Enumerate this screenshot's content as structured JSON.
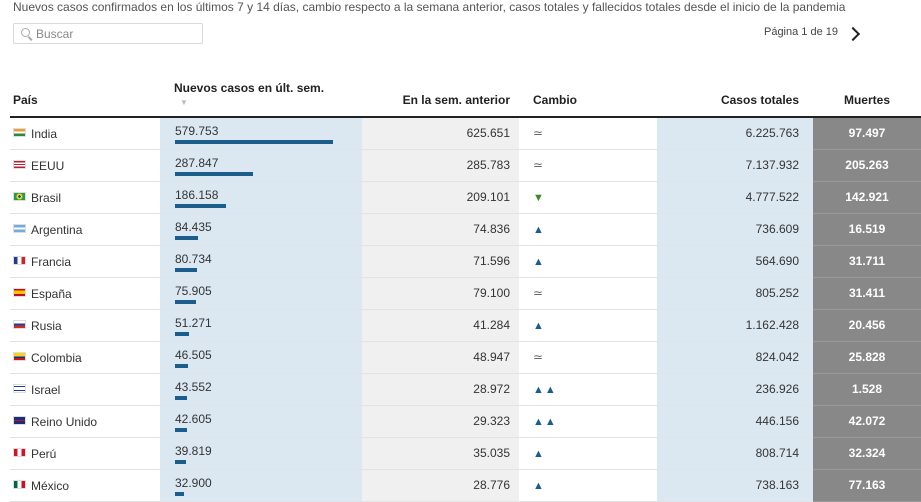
{
  "subtitle": "Nuevos casos confirmados en los últimos 7 y 14 días, cambio respecto a la semana anterior, casos totales y fallecidos totales desde el inicio de la pandemia",
  "search": {
    "placeholder": "Buscar",
    "value": ""
  },
  "pager": {
    "label": "Página 1 de 19"
  },
  "columns": {
    "country": "País",
    "new_cases": "Nuevos casos en últ. sem.",
    "prev_week": "En la sem. anterior",
    "change": "Cambio",
    "total": "Casos totales",
    "deaths": "Muertes"
  },
  "colors": {
    "bar": "#1b5e8c",
    "new_cases_bg": "#dbe8f2",
    "deaths_bg": "#888888",
    "up": "#1b5e8c",
    "down": "#3a8a2a"
  },
  "rows": [
    {
      "country": "India",
      "flag": "flag-india",
      "new_cases": "579.753",
      "new_cases_num": 579753,
      "prev_week": "625.651",
      "change": "≃",
      "change_type": "approx",
      "total": "6.225.763",
      "deaths": "97.497"
    },
    {
      "country": "EEUU",
      "flag": "flag-usa",
      "new_cases": "287.847",
      "new_cases_num": 287847,
      "prev_week": "285.783",
      "change": "≃",
      "change_type": "approx",
      "total": "7.137.932",
      "deaths": "205.263"
    },
    {
      "country": "Brasil",
      "flag": "flag-brazil",
      "new_cases": "186.158",
      "new_cases_num": 186158,
      "prev_week": "209.101",
      "change": "▼",
      "change_type": "down",
      "total": "4.777.522",
      "deaths": "142.921"
    },
    {
      "country": "Argentina",
      "flag": "flag-argentina",
      "new_cases": "84.435",
      "new_cases_num": 84435,
      "prev_week": "74.836",
      "change": "▲",
      "change_type": "up",
      "total": "736.609",
      "deaths": "16.519"
    },
    {
      "country": "Francia",
      "flag": "flag-france",
      "new_cases": "80.734",
      "new_cases_num": 80734,
      "prev_week": "71.596",
      "change": "▲",
      "change_type": "up",
      "total": "564.690",
      "deaths": "31.711"
    },
    {
      "country": "España",
      "flag": "flag-spain",
      "new_cases": "75.905",
      "new_cases_num": 75905,
      "prev_week": "79.100",
      "change": "≃",
      "change_type": "approx",
      "total": "805.252",
      "deaths": "31.411"
    },
    {
      "country": "Rusia",
      "flag": "flag-russia",
      "new_cases": "51.271",
      "new_cases_num": 51271,
      "prev_week": "41.284",
      "change": "▲",
      "change_type": "up",
      "total": "1.162.428",
      "deaths": "20.456"
    },
    {
      "country": "Colombia",
      "flag": "flag-colombia",
      "new_cases": "46.505",
      "new_cases_num": 46505,
      "prev_week": "48.947",
      "change": "≃",
      "change_type": "approx",
      "total": "824.042",
      "deaths": "25.828"
    },
    {
      "country": "Israel",
      "flag": "flag-israel",
      "new_cases": "43.552",
      "new_cases_num": 43552,
      "prev_week": "28.972",
      "change": "▲▲",
      "change_type": "up",
      "total": "236.926",
      "deaths": "1.528"
    },
    {
      "country": "Reino Unido",
      "flag": "flag-uk",
      "new_cases": "42.605",
      "new_cases_num": 42605,
      "prev_week": "29.323",
      "change": "▲▲",
      "change_type": "up",
      "total": "446.156",
      "deaths": "42.072"
    },
    {
      "country": "Perú",
      "flag": "flag-peru",
      "new_cases": "39.819",
      "new_cases_num": 39819,
      "prev_week": "35.035",
      "change": "▲",
      "change_type": "up",
      "total": "808.714",
      "deaths": "32.324"
    },
    {
      "country": "México",
      "flag": "flag-mexico",
      "new_cases": "32.900",
      "new_cases_num": 32900,
      "prev_week": "28.776",
      "change": "▲",
      "change_type": "up",
      "total": "738.163",
      "deaths": "77.163"
    }
  ]
}
